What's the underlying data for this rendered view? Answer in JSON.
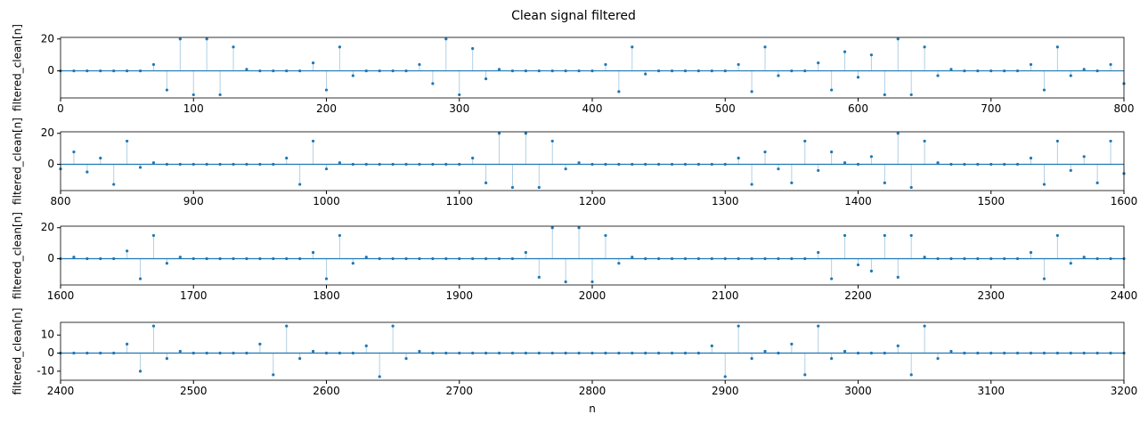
{
  "title": "Clean signal filtered",
  "chart_data": [
    {
      "type": "stem",
      "ylabel": "filtered_clean[n]",
      "color": "#1f77b4",
      "x": [
        0,
        10,
        20,
        30,
        40,
        50,
        60,
        70,
        80,
        90,
        100,
        110,
        120,
        130,
        140,
        150,
        160,
        170,
        180,
        190,
        200,
        210,
        220,
        230,
        240,
        250,
        260,
        270,
        280,
        290,
        300,
        310,
        320,
        330,
        340,
        350,
        360,
        370,
        380,
        390,
        400,
        410,
        420,
        430,
        440,
        450,
        460,
        470,
        480,
        490,
        500,
        510,
        520,
        530,
        540,
        550,
        560,
        570,
        580,
        590,
        600,
        610,
        620,
        630,
        640,
        650,
        660,
        670,
        680,
        690,
        700,
        710,
        720,
        730,
        740,
        750,
        760,
        770,
        780,
        790,
        800
      ],
      "values": [
        0,
        0,
        0,
        0,
        0,
        0,
        0,
        4,
        -12,
        20,
        -15,
        20,
        -15,
        15,
        1,
        0,
        0,
        0,
        0,
        5,
        -12,
        15,
        -3,
        0,
        0,
        0,
        0,
        4,
        -8,
        20,
        -15,
        14,
        -5,
        1,
        0,
        0,
        0,
        0,
        0,
        0,
        0,
        4,
        -13,
        15,
        -2,
        0,
        0,
        0,
        0,
        0,
        0,
        4,
        -13,
        15,
        -3,
        0,
        0,
        5,
        -12,
        12,
        -4,
        10,
        -15,
        20,
        -15,
        15,
        -3,
        1,
        0,
        0,
        0,
        0,
        0,
        4,
        -12,
        15,
        -3,
        1,
        0,
        4,
        -8
      ],
      "xlim": [
        0,
        800
      ],
      "xticks": [
        0,
        100,
        200,
        300,
        400,
        500,
        600,
        700,
        800
      ],
      "ylim": [
        -17,
        21
      ],
      "yticks": [
        0,
        20
      ]
    },
    {
      "type": "stem",
      "ylabel": "filtered_clean[n]",
      "color": "#1f77b4",
      "x": [
        800,
        810,
        820,
        830,
        840,
        850,
        860,
        870,
        880,
        890,
        900,
        910,
        920,
        930,
        940,
        950,
        960,
        970,
        980,
        990,
        1000,
        1010,
        1020,
        1030,
        1040,
        1050,
        1060,
        1070,
        1080,
        1090,
        1100,
        1110,
        1120,
        1130,
        1140,
        1150,
        1160,
        1170,
        1180,
        1190,
        1200,
        1210,
        1220,
        1230,
        1240,
        1250,
        1260,
        1270,
        1280,
        1290,
        1300,
        1310,
        1320,
        1330,
        1340,
        1350,
        1360,
        1370,
        1380,
        1390,
        1400,
        1410,
        1420,
        1430,
        1440,
        1450,
        1460,
        1470,
        1480,
        1490,
        1500,
        1510,
        1520,
        1530,
        1540,
        1550,
        1560,
        1570,
        1580,
        1590,
        1600
      ],
      "values": [
        -3,
        8,
        -5,
        4,
        -13,
        15,
        -2,
        1,
        0,
        0,
        0,
        0,
        0,
        0,
        0,
        0,
        0,
        4,
        -13,
        15,
        -3,
        1,
        0,
        0,
        0,
        0,
        0,
        0,
        0,
        0,
        0,
        4,
        -12,
        20,
        -15,
        20,
        -15,
        15,
        -3,
        1,
        0,
        0,
        0,
        0,
        0,
        0,
        0,
        0,
        0,
        0,
        0,
        4,
        -13,
        8,
        -3,
        -12,
        15,
        -4,
        8,
        1,
        0,
        5,
        -12,
        20,
        -15,
        15,
        1,
        0,
        0,
        0,
        0,
        0,
        0,
        4,
        -13,
        15,
        -4,
        5,
        -12,
        15,
        -6
      ],
      "xlim": [
        800,
        1600
      ],
      "xticks": [
        800,
        900,
        1000,
        1100,
        1200,
        1300,
        1400,
        1500,
        1600
      ],
      "ylim": [
        -17,
        21
      ],
      "yticks": [
        0,
        20
      ]
    },
    {
      "type": "stem",
      "ylabel": "filtered_clean[n]",
      "color": "#1f77b4",
      "x": [
        1600,
        1610,
        1620,
        1630,
        1640,
        1650,
        1660,
        1670,
        1680,
        1690,
        1700,
        1710,
        1720,
        1730,
        1740,
        1750,
        1760,
        1770,
        1780,
        1790,
        1800,
        1810,
        1820,
        1830,
        1840,
        1850,
        1860,
        1870,
        1880,
        1890,
        1900,
        1910,
        1920,
        1930,
        1940,
        1950,
        1960,
        1970,
        1980,
        1990,
        2000,
        2010,
        2020,
        2030,
        2040,
        2050,
        2060,
        2070,
        2080,
        2090,
        2100,
        2110,
        2120,
        2130,
        2140,
        2150,
        2160,
        2170,
        2180,
        2190,
        2200,
        2210,
        2220,
        2230,
        2240,
        2250,
        2260,
        2270,
        2280,
        2290,
        2300,
        2310,
        2320,
        2330,
        2340,
        2350,
        2360,
        2370,
        2380,
        2390,
        2400
      ],
      "values": [
        0,
        1,
        0,
        0,
        0,
        5,
        -13,
        15,
        -3,
        1,
        0,
        0,
        0,
        0,
        0,
        0,
        0,
        0,
        0,
        4,
        -13,
        15,
        -3,
        1,
        0,
        0,
        0,
        0,
        0,
        0,
        0,
        0,
        0,
        0,
        0,
        4,
        -12,
        20,
        -15,
        20,
        -15,
        15,
        -3,
        1,
        0,
        0,
        0,
        0,
        0,
        0,
        0,
        0,
        0,
        0,
        0,
        0,
        0,
        4,
        -13,
        15,
        -4,
        -8,
        15,
        -12,
        15,
        1,
        0,
        0,
        0,
        0,
        0,
        0,
        0,
        4,
        -13,
        15,
        -3,
        1,
        0,
        0,
        0
      ],
      "xlim": [
        1600,
        2400
      ],
      "xticks": [
        1600,
        1700,
        1800,
        1900,
        2000,
        2100,
        2200,
        2300,
        2400
      ],
      "ylim": [
        -17,
        21
      ],
      "yticks": [
        0,
        20
      ]
    },
    {
      "type": "stem",
      "ylabel": "filtered_clean[n]",
      "xlabel": "n",
      "color": "#1f77b4",
      "x": [
        2400,
        2410,
        2420,
        2430,
        2440,
        2450,
        2460,
        2470,
        2480,
        2490,
        2500,
        2510,
        2520,
        2530,
        2540,
        2550,
        2560,
        2570,
        2580,
        2590,
        2600,
        2610,
        2620,
        2630,
        2640,
        2650,
        2660,
        2670,
        2680,
        2690,
        2700,
        2710,
        2720,
        2730,
        2740,
        2750,
        2760,
        2770,
        2780,
        2790,
        2800,
        2810,
        2820,
        2830,
        2840,
        2850,
        2860,
        2870,
        2880,
        2890,
        2900,
        2910,
        2920,
        2930,
        2940,
        2950,
        2960,
        2970,
        2980,
        2990,
        3000,
        3010,
        3020,
        3030,
        3040,
        3050,
        3060,
        3070,
        3080,
        3090,
        3100,
        3110,
        3120,
        3130,
        3140,
        3150,
        3160,
        3170,
        3180,
        3190,
        3200
      ],
      "values": [
        0,
        0,
        0,
        0,
        0,
        5,
        -10,
        15,
        -3,
        1,
        0,
        0,
        0,
        0,
        0,
        5,
        -12,
        15,
        -3,
        1,
        0,
        0,
        0,
        4,
        -13,
        15,
        -3,
        1,
        0,
        0,
        0,
        0,
        0,
        0,
        0,
        0,
        0,
        0,
        0,
        0,
        0,
        0,
        0,
        0,
        0,
        0,
        0,
        0,
        0,
        4,
        -13,
        15,
        -3,
        1,
        0,
        5,
        -12,
        15,
        -3,
        1,
        0,
        0,
        0,
        4,
        -12,
        15,
        -3,
        1,
        0,
        0,
        0,
        0,
        0,
        0,
        0,
        0,
        0,
        0,
        0,
        0,
        0
      ],
      "xlim": [
        2400,
        3200
      ],
      "xticks": [
        2400,
        2500,
        2600,
        2700,
        2800,
        2900,
        3000,
        3100,
        3200
      ],
      "ylim": [
        -15,
        17
      ],
      "yticks": [
        -10,
        0,
        10
      ]
    }
  ]
}
